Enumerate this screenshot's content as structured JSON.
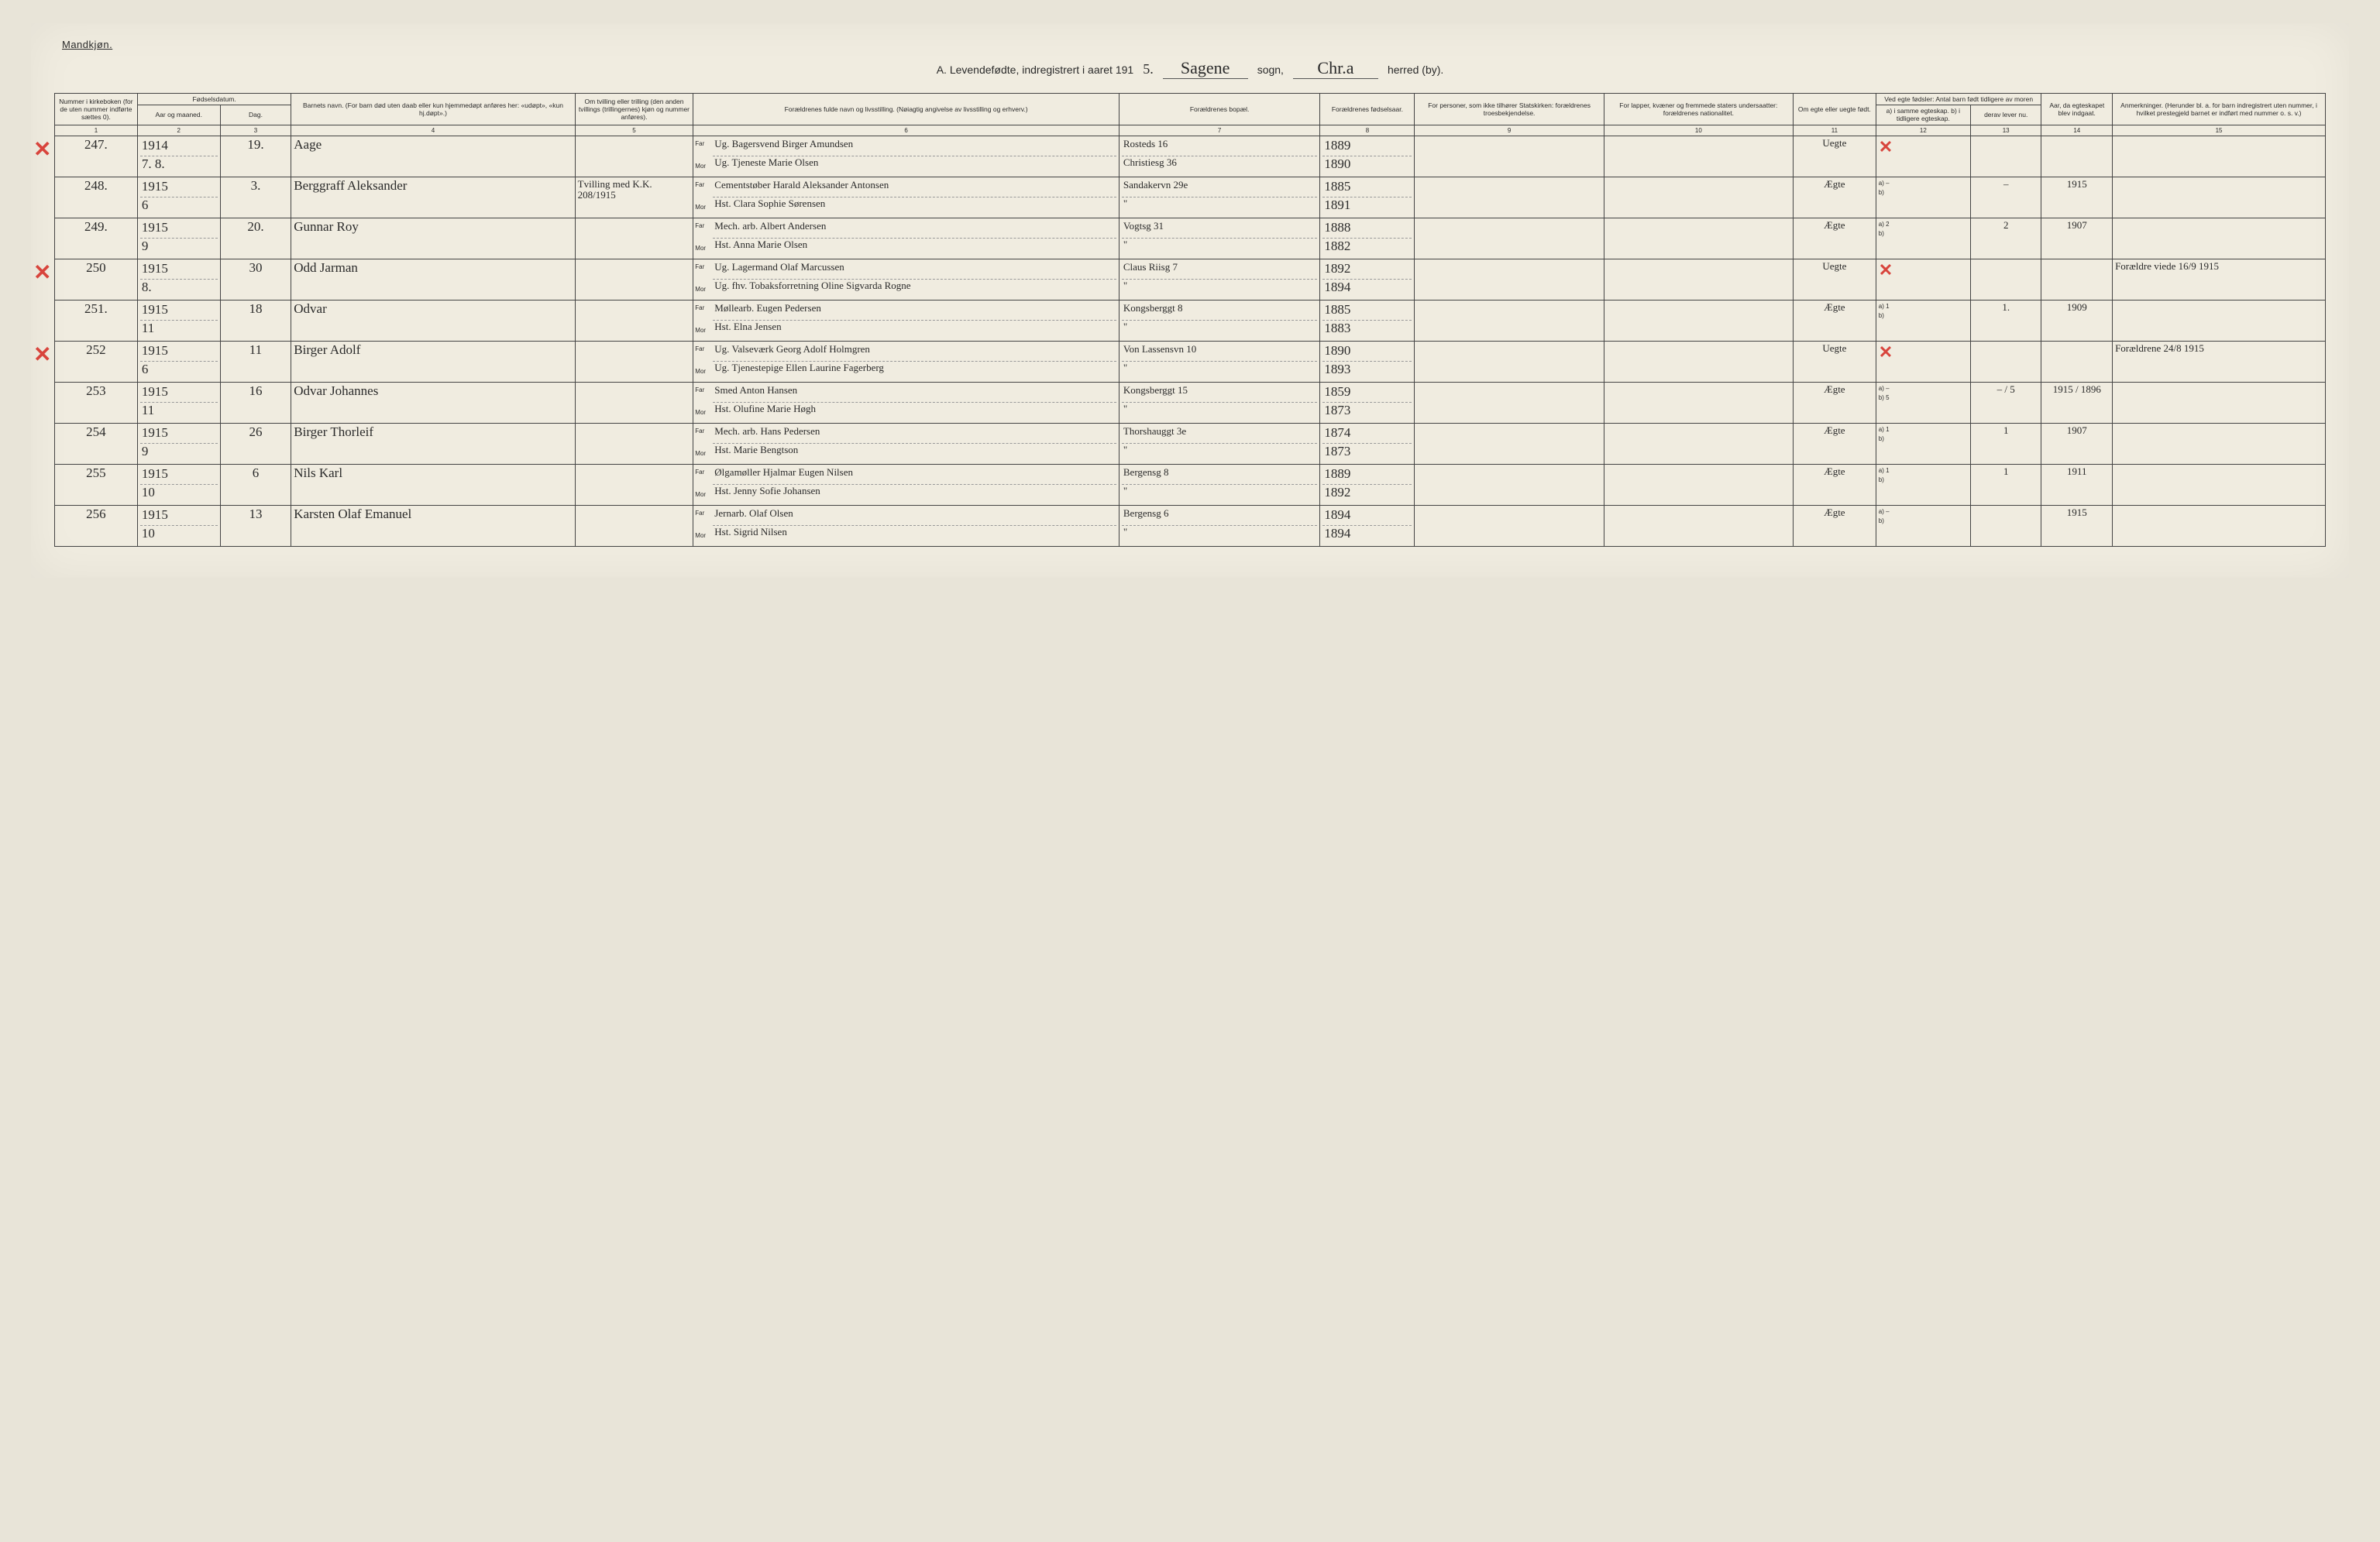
{
  "page": {
    "gender": "Mandkjøn.",
    "title_prefix": "A.  Levendefødte, indregistrert i aaret 191",
    "year_suffix": "5.",
    "sogn_script": "Sagene",
    "sogn_label": "sogn,",
    "herred_script": "Chr.a",
    "herred_label": "herred (by)."
  },
  "columns": {
    "c1": "Nummer i kirke­boken (for de uten nummer indførte sættes 0).",
    "c2_group": "Fødselsdatum.",
    "c2": "Aar og maaned.",
    "c3": "Dag.",
    "c4": "Barnets navn.\n(For barn død uten daab eller kun hjemmedøpt anføres her: «udøpt», «kun hj.døpt».)",
    "c5": "Om tvilling eller trilling (den anden tvillings (trillingernes) kjøn og nummer anføres).",
    "c6": "Forældrenes fulde navn og livsstilling.\n(Nøiagtig angivelse av livsstilling og erhverv.)",
    "c7": "Forældrenes bopæl.",
    "c8": "For­ældrenes fødsels­aar.",
    "c9": "For personer, som ikke tilhører Statskirken: forældrenes troesbekjendelse.",
    "c10": "For lapper, kvæner og fremmede staters undersaatter: forældrenes nationalitet.",
    "c11": "Om egte eller uegte født.",
    "c12_group": "Ved egte fødsler: Antal barn født tid­ligere av moren",
    "c12": "a) i samme egteskap.\nb) i tidligere egteskap.",
    "c13": "derav lever nu.",
    "c14": "Aar, da egte­skapet blev ind­gaat.",
    "c15": "Anmerkninger.\n(Herunder bl. a. for barn ind­registrert uten nummer, i hvilket prestegjeld barnet er indført med nummer o. s. v.)",
    "far": "Far",
    "mor": "Mor"
  },
  "colnums": [
    "1",
    "2",
    "3",
    "4",
    "5",
    "6",
    "7",
    "8",
    "9",
    "10",
    "11",
    "12",
    "13",
    "14",
    "15"
  ],
  "rows": [
    {
      "redx": true,
      "num": "247.",
      "ym_top": "1914",
      "ym_bot": "7. 8.",
      "day": "19.",
      "name": "Aage",
      "twin": "",
      "far": "Ug. Bagersvend  Birger Amundsen",
      "mor": "Ug. Tjeneste Marie Olsen",
      "addr_top": "Rosteds 16",
      "addr_bot": "Christiesg 36",
      "year_top": "1889",
      "year_bot": "1890",
      "egte": "Uegte",
      "a": "",
      "b": "",
      "derav": "",
      "aar_egt": "",
      "cell_redx": true,
      "remark": ""
    },
    {
      "redx": false,
      "num": "248.",
      "ym_top": "1915",
      "ym_bot": "6",
      "day": "3.",
      "name": "Berggraff Aleksander",
      "twin": "Tvilling med K.K. 208/1915",
      "far": "Cementstøber Harald Aleksander Antonsen",
      "mor": "Hst. Clara Sophie Sørensen",
      "addr_top": "Sandakervn 29e",
      "addr_bot": "\"",
      "year_top": "1885",
      "year_bot": "1891",
      "egte": "Ægte",
      "a": "–",
      "b": "",
      "derav": "–",
      "aar_egt": "1915",
      "cell_redx": false,
      "remark": ""
    },
    {
      "redx": false,
      "num": "249.",
      "ym_top": "1915",
      "ym_bot": "9",
      "day": "20.",
      "name": "Gunnar Roy",
      "twin": "",
      "far": "Mech. arb.  Albert Andersen",
      "mor": "Hst. Anna Marie Olsen",
      "addr_top": "Vogtsg 31",
      "addr_bot": "\"",
      "year_top": "1888",
      "year_bot": "1882",
      "egte": "Ægte",
      "a": "2",
      "b": "",
      "derav": "2",
      "aar_egt": "1907",
      "cell_redx": false,
      "remark": ""
    },
    {
      "redx": true,
      "num": "250",
      "ym_top": "1915",
      "ym_bot": "8.",
      "day": "30",
      "name": "Odd Jarman",
      "twin": "",
      "far": "Ug. Lagermand  Olaf Marcussen",
      "mor": "Ug. fhv. Tobaksforretning Oline Sigvarda Rogne",
      "addr_top": "Claus Riisg 7",
      "addr_bot": "\"",
      "year_top": "1892",
      "year_bot": "1894",
      "egte": "Uegte",
      "a": "",
      "b": "",
      "derav": "",
      "aar_egt": "",
      "cell_redx": true,
      "remark": "Forældre viede 16/9 1915"
    },
    {
      "redx": false,
      "num": "251.",
      "ym_top": "1915",
      "ym_bot": "11",
      "day": "18",
      "name": "Odvar",
      "twin": "",
      "far": "Møllearb. Eugen Pedersen",
      "mor": "Hst. Elna Jensen",
      "addr_top": "Kongsberggt 8",
      "addr_bot": "\"",
      "year_top": "1885",
      "year_bot": "1883",
      "egte": "Ægte",
      "a": "1",
      "b": "",
      "derav": "1.",
      "aar_egt": "1909",
      "cell_redx": false,
      "remark": ""
    },
    {
      "redx": true,
      "num": "252",
      "ym_top": "1915",
      "ym_bot": "6",
      "day": "11",
      "name": "Birger Adolf",
      "twin": "",
      "far": "Ug. Valseværk Georg Adolf Holmgren",
      "mor": "Ug. Tjenestepige Ellen Laurine Fagerberg",
      "addr_top": "Von Lassensvn 10",
      "addr_bot": "\"",
      "year_top": "1890",
      "year_bot": "1893",
      "egte": "Uegte",
      "a": "",
      "b": "",
      "derav": "",
      "aar_egt": "",
      "cell_redx": true,
      "remark": "Forældrene 24/8 1915"
    },
    {
      "redx": false,
      "num": "253",
      "ym_top": "1915",
      "ym_bot": "11",
      "day": "16",
      "name": "Odvar Johannes",
      "twin": "",
      "far": "Smed  Anton Hansen",
      "mor": "Hst. Olufine Marie Høgh",
      "addr_top": "Kongsberggt 15",
      "addr_bot": "\"",
      "year_top": "1859",
      "year_bot": "1873",
      "egte": "Ægte",
      "a": "–",
      "b": "5",
      "derav": "– / 5",
      "aar_egt": "1915 / 1896",
      "cell_redx": false,
      "remark": ""
    },
    {
      "redx": false,
      "num": "254",
      "ym_top": "1915",
      "ym_bot": "9",
      "day": "26",
      "name": "Birger Thorleif",
      "twin": "",
      "far": "Mech. arb.  Hans Pedersen",
      "mor": "Hst. Marie Bengtson",
      "addr_top": "Thorshauggt 3e",
      "addr_bot": "\"",
      "year_top": "1874",
      "year_bot": "1873",
      "egte": "Ægte",
      "a": "1",
      "b": "",
      "derav": "1",
      "aar_egt": "1907",
      "cell_redx": false,
      "remark": ""
    },
    {
      "redx": false,
      "num": "255",
      "ym_top": "1915",
      "ym_bot": "10",
      "day": "6",
      "name": "Nils Karl",
      "twin": "",
      "far": "Ølgamøller Hjalmar Eugen Nilsen",
      "mor": "Hst. Jenny Sofie Johansen",
      "addr_top": "Bergensg 8",
      "addr_bot": "\"",
      "year_top": "1889",
      "year_bot": "1892",
      "egte": "Ægte",
      "a": "1",
      "b": "",
      "derav": "1",
      "aar_egt": "1911",
      "cell_redx": false,
      "remark": ""
    },
    {
      "redx": false,
      "num": "256",
      "ym_top": "1915",
      "ym_bot": "10",
      "day": "13",
      "name": "Karsten Olaf Emanuel",
      "twin": "",
      "far": "Jernarb. Olaf Olsen",
      "mor": "Hst. Sigrid Nilsen",
      "addr_top": "Bergensg 6",
      "addr_bot": "\"",
      "year_top": "1894",
      "year_bot": "1894",
      "egte": "Ægte",
      "a": "–",
      "b": "",
      "derav": "",
      "aar_egt": "1915",
      "cell_redx": false,
      "remark": ""
    }
  ]
}
